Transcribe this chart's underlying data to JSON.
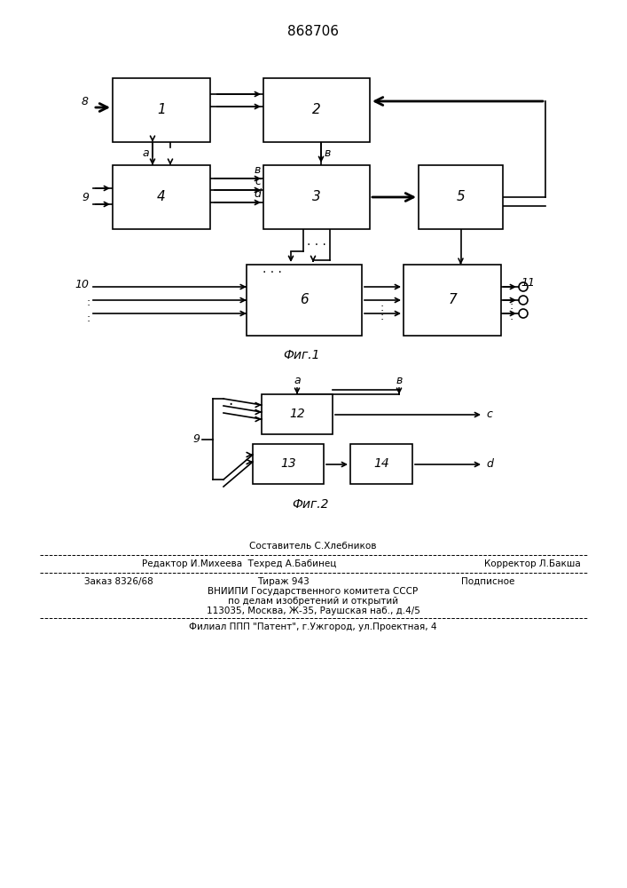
{
  "title": "868706",
  "fig1_caption": "Фиг.1",
  "fig2_caption": "Фиг.2",
  "bg_color": "#ffffff",
  "lc": "#000000",
  "lw": 1.2
}
